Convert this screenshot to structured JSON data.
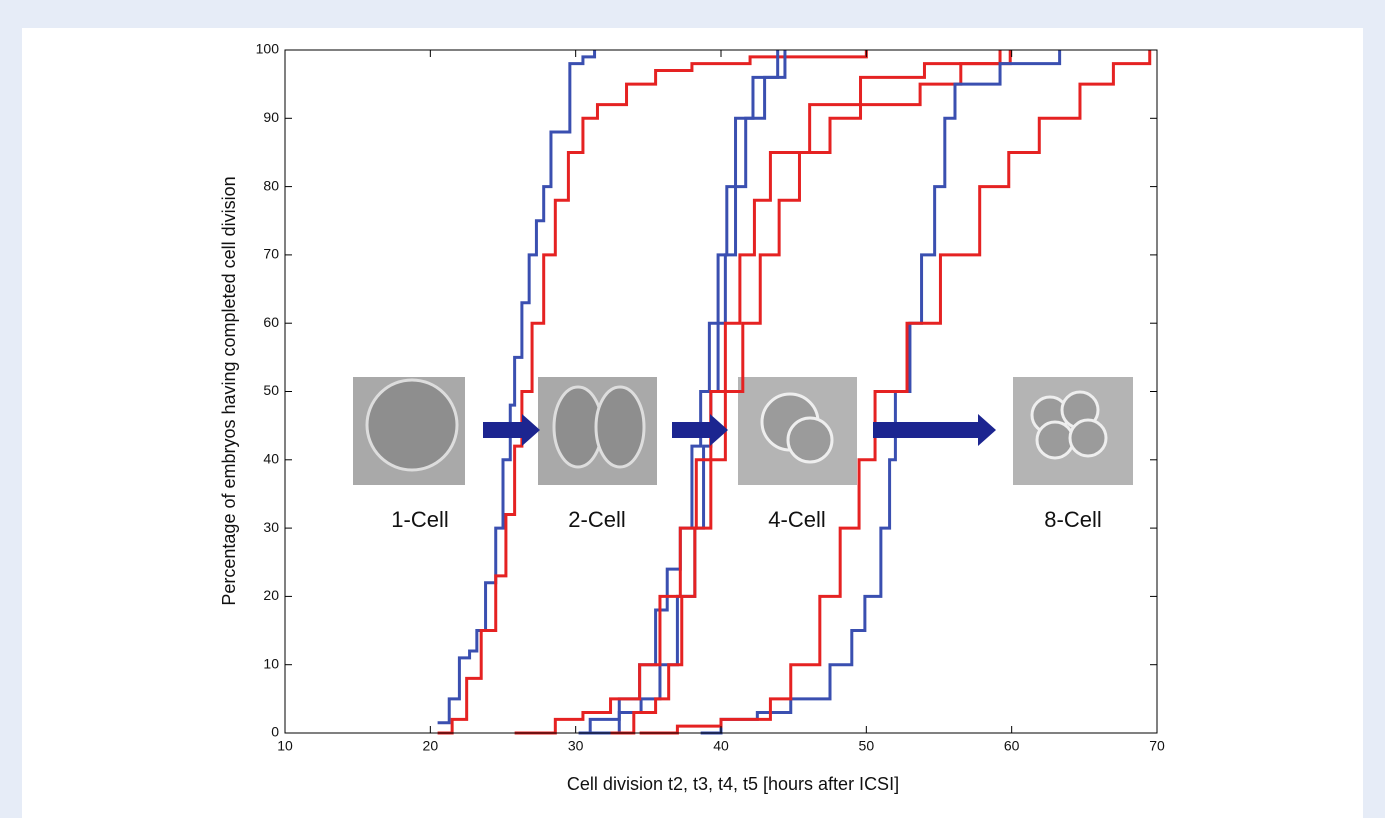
{
  "chart_data": {
    "type": "step",
    "xlabel": "Cell division t2, t3, t4, t5 [hours after ICSI]",
    "ylabel": "Percentage of embryos having completed cell division",
    "xlim": [
      10,
      70
    ],
    "xticks": [
      10,
      20,
      30,
      40,
      50,
      60,
      70
    ],
    "ylim": [
      0,
      100
    ],
    "yticks": [
      0,
      10,
      20,
      30,
      40,
      50,
      60,
      70,
      80,
      90,
      100
    ],
    "annotations": [
      "1-Cell",
      "2-Cell",
      "4-Cell",
      "8-Cell"
    ],
    "series": [
      {
        "color": "#3a4fb0",
        "x": [
          20.5,
          21.3,
          22,
          22.7,
          23.2,
          23.8,
          24.5,
          25,
          25.5,
          25.8,
          26.3,
          26.8,
          27.3,
          27.8,
          28.3,
          29.6,
          30.5,
          31.3
        ],
        "values": [
          1.5,
          5,
          11,
          12,
          15,
          22,
          30,
          40,
          48,
          55,
          63,
          70,
          75,
          80,
          88,
          98,
          99,
          100
        ]
      },
      {
        "color": "#e52222",
        "x": [
          20.5,
          21.5,
          22.5,
          23.5,
          24.5,
          25.2,
          25.8,
          26.3,
          27,
          27.8,
          28.6,
          29.5,
          30.5,
          31.5,
          33.5,
          35.5,
          38,
          42,
          50
        ],
        "values": [
          0,
          2,
          8,
          15,
          23,
          32,
          42,
          50,
          60,
          70,
          78,
          85,
          90,
          92,
          95,
          97,
          98,
          99,
          100
        ]
      },
      {
        "color": "#3a4fb0",
        "x": [
          30.2,
          31,
          33,
          34.4,
          35.5,
          36.3,
          37.2,
          38,
          38.6,
          39.2,
          39.8,
          40.4,
          41,
          42.2,
          43.9
        ],
        "values": [
          0,
          2,
          5,
          10,
          18,
          24,
          30,
          42,
          50,
          60,
          70,
          80,
          90,
          96,
          100
        ]
      },
      {
        "color": "#3a4fb0",
        "x": [
          31,
          33,
          34.5,
          35.8,
          37,
          38.2,
          38.8,
          39.3,
          39.8,
          40.3,
          41,
          41.7,
          43,
          44.4
        ],
        "values": [
          0,
          3,
          5,
          10,
          20,
          30,
          42,
          50,
          60,
          70,
          80,
          90,
          96,
          100
        ]
      },
      {
        "color": "#e52222",
        "x": [
          25.8,
          28.6,
          30.5,
          32.4,
          34.4,
          35.8,
          37.2,
          38.3,
          39.3,
          40.3,
          41.3,
          42.3,
          43.4,
          46.1,
          49.6,
          54,
          59.2
        ],
        "values": [
          0,
          2,
          3,
          5,
          10,
          20,
          30,
          40,
          50,
          60,
          70,
          78,
          85,
          92,
          96,
          98,
          100
        ]
      },
      {
        "color": "#e52222",
        "x": [
          32.4,
          34,
          35.5,
          36.4,
          37.3,
          38.2,
          39.3,
          40.3,
          41.5,
          42.7,
          44,
          45.4,
          47.5,
          49.6,
          53.7,
          56.5,
          59.9
        ],
        "values": [
          0,
          3,
          5,
          10,
          20,
          30,
          40,
          50,
          60,
          70,
          78,
          85,
          90,
          92,
          95,
          98,
          100
        ]
      },
      {
        "color": "#3a4fb0",
        "x": [
          38.6,
          40,
          42.5,
          44.8,
          47.5,
          49,
          49.9,
          51,
          51.6,
          52,
          53,
          53.8,
          54.7,
          55.4,
          56.1,
          59.2,
          63.3
        ],
        "values": [
          0,
          2,
          3,
          5,
          10,
          15,
          20,
          30,
          40,
          50,
          60,
          70,
          80,
          90,
          95,
          98,
          100
        ]
      },
      {
        "color": "#e52222",
        "x": [
          34.4,
          37,
          40,
          43.4,
          44.8,
          46.8,
          48.2,
          49.5,
          50.6,
          52.8,
          55.1,
          57.8,
          59.8,
          61.9,
          64.7,
          67,
          69.5
        ],
        "values": [
          0,
          1,
          2,
          5,
          10,
          20,
          30,
          40,
          50,
          60,
          70,
          80,
          85,
          90,
          95,
          98,
          100
        ]
      }
    ]
  }
}
